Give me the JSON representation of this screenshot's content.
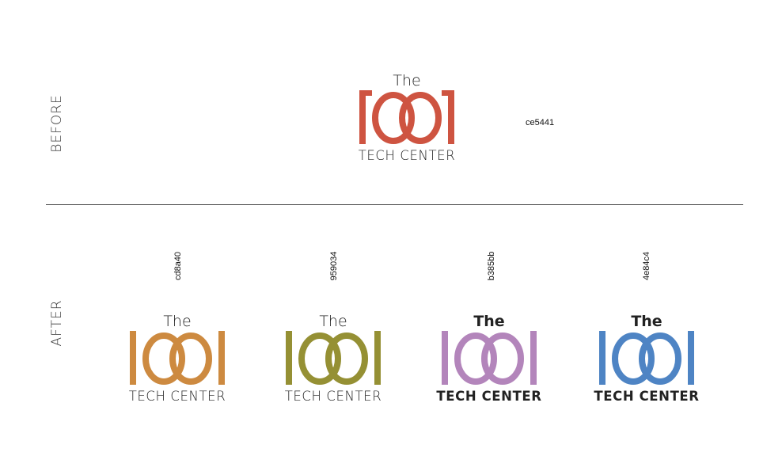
{
  "labels": {
    "before": "BEFORE",
    "after": "AFTER"
  },
  "logo_text": {
    "the": "The",
    "tech_center": "TECH CENTER"
  },
  "before": {
    "color_hex": "ce5441",
    "color": "#ce5441"
  },
  "after": [
    {
      "color_hex": "cd8a40",
      "color": "#cd8a40",
      "weight": "light"
    },
    {
      "color_hex": "959034",
      "color": "#959034",
      "weight": "light"
    },
    {
      "color_hex": "b385bb",
      "color": "#b385bb",
      "weight": "bold"
    },
    {
      "color_hex": "4e84c4",
      "color": "#4e84c4",
      "weight": "bold"
    }
  ]
}
